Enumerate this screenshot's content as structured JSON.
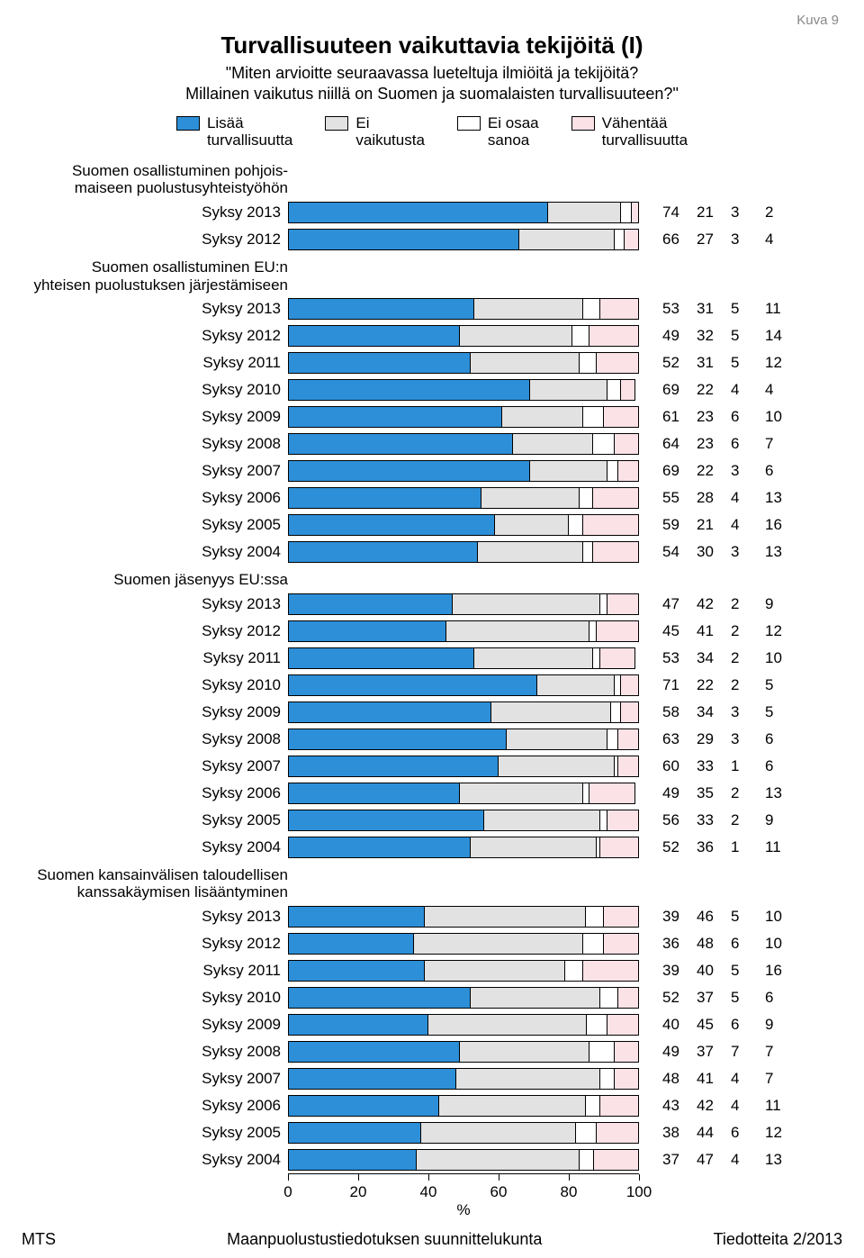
{
  "figure_label": "Kuva 9",
  "title": "Turvallisuuteen vaikuttavia tekijöitä (I)",
  "subtitle_line1": "\"Miten arvioitte seuraavassa lueteltuja ilmiöitä ja tekijöitä?",
  "subtitle_line2": "Millainen vaikutus niillä on Suomen ja suomalaisten turvallisuuteen?\"",
  "legend": [
    {
      "label": "Lisää\nturvallisuutta",
      "color": "#2d8fd8"
    },
    {
      "label": "Ei\nvaikutusta",
      "color": "#e2e2e2"
    },
    {
      "label": "Ei osaa\nsanoa",
      "color": "#ffffff"
    },
    {
      "label": "Vähentää\nturvallisuutta",
      "color": "#fbe2e6"
    }
  ],
  "colors": {
    "increase": "#2d8fd8",
    "none": "#e2e2e2",
    "dk": "#ffffff",
    "decrease": "#fbe2e6",
    "border": "#000000",
    "bg": "#ffffff"
  },
  "axis": {
    "ticks": [
      0,
      20,
      40,
      60,
      80,
      100
    ],
    "unit": "%"
  },
  "groups": [
    {
      "header": "Suomen osallistuminen pohjois-\nmaiseen puolustusyhteistyöhön",
      "rows": [
        {
          "label": "Syksy 2013",
          "v": [
            74,
            21,
            3,
            2
          ]
        },
        {
          "label": "Syksy 2012",
          "v": [
            66,
            27,
            3,
            4
          ]
        }
      ]
    },
    {
      "header": "Suomen osallistuminen EU:n\nyhteisen puolustuksen järjestämiseen",
      "rows": [
        {
          "label": "Syksy 2013",
          "v": [
            53,
            31,
            5,
            11
          ]
        },
        {
          "label": "Syksy 2012",
          "v": [
            49,
            32,
            5,
            14
          ]
        },
        {
          "label": "Syksy 2011",
          "v": [
            52,
            31,
            5,
            12
          ]
        },
        {
          "label": "Syksy 2010",
          "v": [
            69,
            22,
            4,
            4
          ]
        },
        {
          "label": "Syksy 2009",
          "v": [
            61,
            23,
            6,
            10
          ]
        },
        {
          "label": "Syksy 2008",
          "v": [
            64,
            23,
            6,
            7
          ]
        },
        {
          "label": "Syksy 2007",
          "v": [
            69,
            22,
            3,
            6
          ]
        },
        {
          "label": "Syksy 2006",
          "v": [
            55,
            28,
            4,
            13
          ]
        },
        {
          "label": "Syksy 2005",
          "v": [
            59,
            21,
            4,
            16
          ]
        },
        {
          "label": "Syksy 2004",
          "v": [
            54,
            30,
            3,
            13
          ]
        }
      ]
    },
    {
      "header": "Suomen jäsenyys EU:ssa",
      "rows": [
        {
          "label": "Syksy 2013",
          "v": [
            47,
            42,
            2,
            9
          ]
        },
        {
          "label": "Syksy 2012",
          "v": [
            45,
            41,
            2,
            12
          ]
        },
        {
          "label": "Syksy 2011",
          "v": [
            53,
            34,
            2,
            10
          ]
        },
        {
          "label": "Syksy 2010",
          "v": [
            71,
            22,
            2,
            5
          ]
        },
        {
          "label": "Syksy 2009",
          "v": [
            58,
            34,
            3,
            5
          ]
        },
        {
          "label": "Syksy 2008",
          "v": [
            63,
            29,
            3,
            6
          ]
        },
        {
          "label": "Syksy 2007",
          "v": [
            60,
            33,
            1,
            6
          ]
        },
        {
          "label": "Syksy 2006",
          "v": [
            49,
            35,
            2,
            13
          ]
        },
        {
          "label": "Syksy 2005",
          "v": [
            56,
            33,
            2,
            9
          ]
        },
        {
          "label": "Syksy 2004",
          "v": [
            52,
            36,
            1,
            11
          ]
        }
      ]
    },
    {
      "header": "Suomen kansainvälisen taloudellisen\nkanssakäymisen lisääntyminen",
      "rows": [
        {
          "label": "Syksy 2013",
          "v": [
            39,
            46,
            5,
            10
          ]
        },
        {
          "label": "Syksy 2012",
          "v": [
            36,
            48,
            6,
            10
          ]
        },
        {
          "label": "Syksy 2011",
          "v": [
            39,
            40,
            5,
            16
          ]
        },
        {
          "label": "Syksy 2010",
          "v": [
            52,
            37,
            5,
            6
          ]
        },
        {
          "label": "Syksy 2009",
          "v": [
            40,
            45,
            6,
            9
          ]
        },
        {
          "label": "Syksy 2008",
          "v": [
            49,
            37,
            7,
            7
          ]
        },
        {
          "label": "Syksy 2007",
          "v": [
            48,
            41,
            4,
            7
          ]
        },
        {
          "label": "Syksy 2006",
          "v": [
            43,
            42,
            4,
            11
          ]
        },
        {
          "label": "Syksy 2005",
          "v": [
            38,
            44,
            6,
            12
          ]
        },
        {
          "label": "Syksy 2004",
          "v": [
            37,
            47,
            4,
            13
          ]
        }
      ]
    }
  ],
  "footer": {
    "left": "MTS",
    "center": "Maanpuolustustiedotuksen suunnittelukunta",
    "right": "Tiedotteita 2/2013"
  }
}
